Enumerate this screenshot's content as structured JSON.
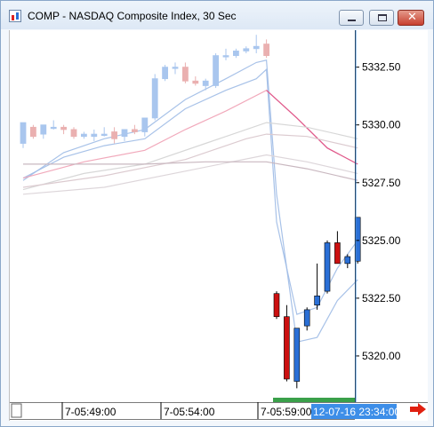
{
  "window": {
    "title": "COMP - NASDAQ Composite Index, 30 Sec",
    "buttons": [
      "minimize-icon",
      "maximize-icon",
      "close-icon"
    ],
    "close_glyph": "✕"
  },
  "chart_data": {
    "type": "candlestick",
    "title": "COMP - NASDAQ Composite Index, 30 Sec",
    "y_ticks": [
      "5332.50",
      "5330.00",
      "5327.50",
      "5325.00",
      "5322.50",
      "5320.00"
    ],
    "y_tick_values": [
      5332.5,
      5330.0,
      5327.5,
      5325.0,
      5322.5,
      5320.0
    ],
    "ylim": [
      5318.0,
      5334.1
    ],
    "x_ticks": [
      "7-05:49:00",
      "7-05:54:00",
      "7-05:59:00"
    ],
    "cursor_time_label": "12-07-16 23:34:00",
    "up_color": "#2a6fd6",
    "down_color": "#cc1010",
    "faded_up_color": "#a9c6ee",
    "faded_down_color": "#eab0b0",
    "grid": false,
    "candles": [
      {
        "i": 0,
        "o": 5329.2,
        "h": 5330.1,
        "l": 5329.0,
        "c": 5330.1,
        "faded": true
      },
      {
        "i": 1,
        "o": 5329.9,
        "h": 5330.0,
        "l": 5329.4,
        "c": 5329.5,
        "faded": true
      },
      {
        "i": 2,
        "o": 5329.6,
        "h": 5330.0,
        "l": 5329.4,
        "c": 5330.0,
        "faded": true
      },
      {
        "i": 3,
        "o": 5329.9,
        "h": 5330.2,
        "l": 5329.8,
        "c": 5329.9,
        "faded": true
      },
      {
        "i": 4,
        "o": 5329.9,
        "h": 5330.0,
        "l": 5329.6,
        "c": 5329.8,
        "faded": true
      },
      {
        "i": 5,
        "o": 5329.8,
        "h": 5329.9,
        "l": 5329.4,
        "c": 5329.5,
        "faded": true
      },
      {
        "i": 6,
        "o": 5329.5,
        "h": 5329.7,
        "l": 5329.4,
        "c": 5329.6,
        "faded": true
      },
      {
        "i": 7,
        "o": 5329.5,
        "h": 5329.8,
        "l": 5329.3,
        "c": 5329.6,
        "faded": true
      },
      {
        "i": 8,
        "o": 5329.6,
        "h": 5329.9,
        "l": 5329.5,
        "c": 5329.6,
        "faded": true
      },
      {
        "i": 9,
        "o": 5329.7,
        "h": 5329.9,
        "l": 5329.2,
        "c": 5329.4,
        "faded": true
      },
      {
        "i": 10,
        "o": 5329.5,
        "h": 5329.8,
        "l": 5329.3,
        "c": 5329.8,
        "faded": true
      },
      {
        "i": 11,
        "o": 5329.8,
        "h": 5330.0,
        "l": 5329.6,
        "c": 5329.7,
        "faded": true
      },
      {
        "i": 12,
        "o": 5329.7,
        "h": 5330.3,
        "l": 5329.5,
        "c": 5330.3,
        "faded": true
      },
      {
        "i": 13,
        "o": 5330.3,
        "h": 5332.2,
        "l": 5330.2,
        "c": 5332.0,
        "faded": true
      },
      {
        "i": 14,
        "o": 5332.0,
        "h": 5332.6,
        "l": 5331.9,
        "c": 5332.5,
        "faded": true
      },
      {
        "i": 15,
        "o": 5332.5,
        "h": 5332.7,
        "l": 5332.2,
        "c": 5332.5,
        "faded": true
      },
      {
        "i": 16,
        "o": 5332.5,
        "h": 5332.7,
        "l": 5331.8,
        "c": 5331.9,
        "faded": true
      },
      {
        "i": 17,
        "o": 5331.9,
        "h": 5332.1,
        "l": 5331.7,
        "c": 5331.8,
        "faded": true
      },
      {
        "i": 18,
        "o": 5331.7,
        "h": 5332.0,
        "l": 5331.5,
        "c": 5331.9,
        "faded": true
      },
      {
        "i": 19,
        "o": 5331.7,
        "h": 5333.1,
        "l": 5331.6,
        "c": 5333.0,
        "faded": true
      },
      {
        "i": 20,
        "o": 5333.0,
        "h": 5333.3,
        "l": 5332.8,
        "c": 5333.0,
        "faded": true
      },
      {
        "i": 21,
        "o": 5333.0,
        "h": 5333.3,
        "l": 5332.9,
        "c": 5333.2,
        "faded": true
      },
      {
        "i": 22,
        "o": 5333.2,
        "h": 5333.4,
        "l": 5333.1,
        "c": 5333.3,
        "faded": true
      },
      {
        "i": 23,
        "o": 5333.3,
        "h": 5333.9,
        "l": 5333.1,
        "c": 5333.4,
        "faded": true
      },
      {
        "i": 24,
        "o": 5333.5,
        "h": 5333.7,
        "l": 5332.9,
        "c": 5333.0,
        "faded": true
      },
      {
        "i": 25,
        "o": 5322.7,
        "h": 5322.8,
        "l": 5321.6,
        "c": 5321.7,
        "faded": false
      },
      {
        "i": 26,
        "o": 5321.7,
        "h": 5322.2,
        "l": 5318.9,
        "c": 5319.0,
        "faded": false
      },
      {
        "i": 27,
        "o": 5318.9,
        "h": 5321.2,
        "l": 5318.6,
        "c": 5321.2,
        "faded": false
      },
      {
        "i": 28,
        "o": 5321.3,
        "h": 5322.1,
        "l": 5321.1,
        "c": 5322.0,
        "faded": false
      },
      {
        "i": 29,
        "o": 5322.2,
        "h": 5324.0,
        "l": 5322.0,
        "c": 5322.6,
        "faded": false
      },
      {
        "i": 30,
        "o": 5322.8,
        "h": 5325.0,
        "l": 5322.7,
        "c": 5324.9,
        "faded": false
      },
      {
        "i": 31,
        "o": 5324.9,
        "h": 5325.4,
        "l": 5324.0,
        "c": 5324.0,
        "faded": false
      },
      {
        "i": 32,
        "o": 5324.0,
        "h": 5324.4,
        "l": 5323.8,
        "c": 5324.3,
        "faded": false
      },
      {
        "i": 33,
        "o": 5324.1,
        "h": 5326.0,
        "l": 5324.0,
        "c": 5326.0,
        "faded": false
      }
    ],
    "overlays": [
      {
        "color": "#9ebbe6",
        "opacity": 0.9,
        "points": [
          [
            0,
            5327.6
          ],
          [
            4,
            5328.8
          ],
          [
            8,
            5329.4
          ],
          [
            12,
            5329.8
          ],
          [
            16,
            5331.1
          ],
          [
            20,
            5332.0
          ],
          [
            23,
            5332.7
          ],
          [
            24,
            5332.8
          ],
          [
            25,
            5327.0
          ],
          [
            27,
            5320.6
          ],
          [
            29,
            5320.8
          ],
          [
            31,
            5322.4
          ],
          [
            33,
            5323.3
          ]
        ]
      },
      {
        "color": "#9ebbe6",
        "opacity": 0.9,
        "points": [
          [
            0,
            5327.7
          ],
          [
            4,
            5328.6
          ],
          [
            8,
            5329.1
          ],
          [
            12,
            5329.4
          ],
          [
            16,
            5330.7
          ],
          [
            20,
            5331.5
          ],
          [
            23,
            5332.0
          ],
          [
            24,
            5332.4
          ],
          [
            25,
            5325.8
          ],
          [
            27,
            5321.8
          ],
          [
            29,
            5322.1
          ],
          [
            31,
            5323.8
          ],
          [
            33,
            5325.0
          ]
        ]
      },
      {
        "color": "#f0a0b4",
        "opacity": 0.9,
        "points": [
          [
            0,
            5327.7
          ],
          [
            6,
            5328.4
          ],
          [
            12,
            5328.9
          ],
          [
            16,
            5329.8
          ],
          [
            20,
            5330.6
          ],
          [
            24,
            5331.5
          ],
          [
            27,
            5330.3
          ],
          [
            30,
            5329.0
          ],
          [
            33,
            5328.3
          ]
        ]
      },
      {
        "color": "#e05a8c",
        "opacity": 1.0,
        "points": [
          [
            24,
            5331.5
          ],
          [
            27,
            5330.3
          ],
          [
            30,
            5329.0
          ],
          [
            33,
            5328.3
          ]
        ]
      },
      {
        "color": "#d7d7d7",
        "opacity": 1.0,
        "points": [
          [
            0,
            5327.2
          ],
          [
            6,
            5327.9
          ],
          [
            12,
            5328.3
          ],
          [
            18,
            5329.2
          ],
          [
            24,
            5330.1
          ],
          [
            28,
            5329.9
          ],
          [
            33,
            5329.4
          ]
        ]
      },
      {
        "color": "#dccbd0",
        "opacity": 1.0,
        "points": [
          [
            0,
            5327.3
          ],
          [
            8,
            5327.8
          ],
          [
            16,
            5328.5
          ],
          [
            22,
            5329.4
          ],
          [
            24,
            5329.6
          ],
          [
            28,
            5329.5
          ],
          [
            33,
            5329.0
          ]
        ]
      },
      {
        "color": "#ddd6da",
        "opacity": 1.0,
        "points": [
          [
            0,
            5327.0
          ],
          [
            8,
            5327.3
          ],
          [
            16,
            5328.0
          ],
          [
            24,
            5328.7
          ],
          [
            28,
            5328.4
          ],
          [
            33,
            5327.9
          ]
        ]
      },
      {
        "color": "#c9b8c0",
        "opacity": 1.0,
        "points": [
          [
            0,
            5328.3
          ],
          [
            6,
            5328.3
          ],
          [
            12,
            5328.3
          ],
          [
            18,
            5328.4
          ],
          [
            24,
            5328.4
          ],
          [
            28,
            5328.1
          ],
          [
            33,
            5327.6
          ]
        ]
      }
    ]
  },
  "nav": {
    "next_icon": "right-arrow-icon",
    "arrow_color": "#e02010"
  }
}
